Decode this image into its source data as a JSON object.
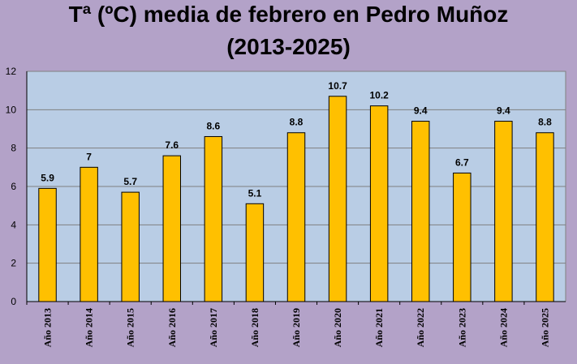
{
  "chart_data": {
    "type": "bar",
    "title_line1": "Tª (ºC) media de febrero en Pedro Muñoz",
    "title_line2": "(2013-2025)",
    "categories": [
      "Año 2013",
      "Año 2014",
      "Año 2015",
      "Año 2016",
      "Año 2017",
      "Año 2018",
      "Año 2019",
      "Año 2020",
      "Año 2021",
      "Año 2022",
      "Año 2023",
      "Año 2024",
      "Año 2025"
    ],
    "values": [
      5.9,
      7,
      5.7,
      7.6,
      8.6,
      5.1,
      8.8,
      10.7,
      10.2,
      9.4,
      6.7,
      9.4,
      8.8
    ],
    "value_labels": [
      "5.9",
      "7",
      "5.7",
      "7.6",
      "8.6",
      "5.1",
      "8.8",
      "10.7",
      "10.2",
      "9.4",
      "6.7",
      "9.4",
      "8.8"
    ],
    "yticks": [
      "0",
      "2",
      "4",
      "6",
      "8",
      "10",
      "12"
    ],
    "ylim": [
      0,
      12
    ],
    "grid": true,
    "legend": "none",
    "colors": {
      "background": "#b3a2c8",
      "plot_area": "#b9cde5",
      "bar_fill": "#ffc000",
      "bar_stroke": "#000000",
      "grid": "#7f7f7f"
    }
  }
}
